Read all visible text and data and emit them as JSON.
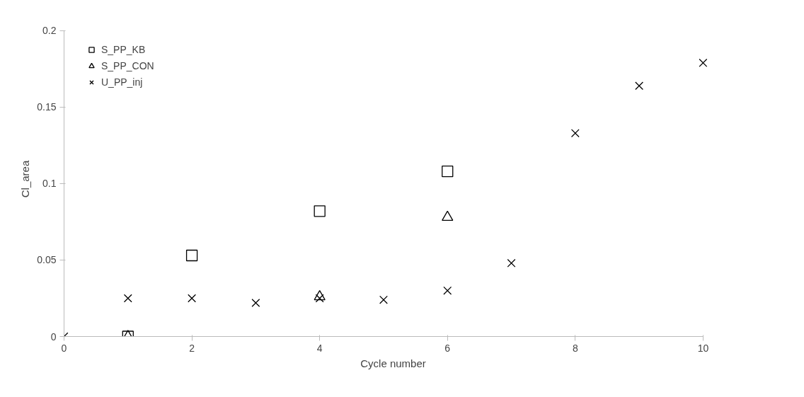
{
  "chart_data": {
    "type": "scatter",
    "xlabel": "Cycle number",
    "ylabel": "Cl_area",
    "x": [
      0,
      1,
      2,
      3,
      4,
      5,
      6,
      7,
      8,
      9,
      10
    ],
    "series": [
      {
        "name": "S_PP_KB",
        "color": "#000000",
        "marker": "square",
        "values": [
          null,
          0,
          0.053,
          null,
          0.082,
          null,
          0.108,
          null,
          null,
          null,
          null
        ]
      },
      {
        "name": "S_PP_CON",
        "color": "#000000",
        "marker": "triangle",
        "values": [
          null,
          0,
          null,
          null,
          0.026,
          null,
          0.078,
          null,
          null,
          null,
          null
        ]
      },
      {
        "name": "U_PP_inj",
        "color": "#000000",
        "marker": "cross",
        "values": [
          0,
          0.025,
          0.025,
          0.022,
          0.025,
          0.024,
          0.03,
          0.048,
          0.133,
          0.164,
          0.179
        ]
      }
    ],
    "xlim": [
      0,
      10
    ],
    "ylim": [
      0,
      0.2
    ],
    "xticks": [
      0,
      2,
      4,
      6,
      8,
      10
    ],
    "yticks": [
      0,
      0.05,
      0.1,
      0.15,
      0.2
    ],
    "grid": false,
    "legend": "top left"
  }
}
